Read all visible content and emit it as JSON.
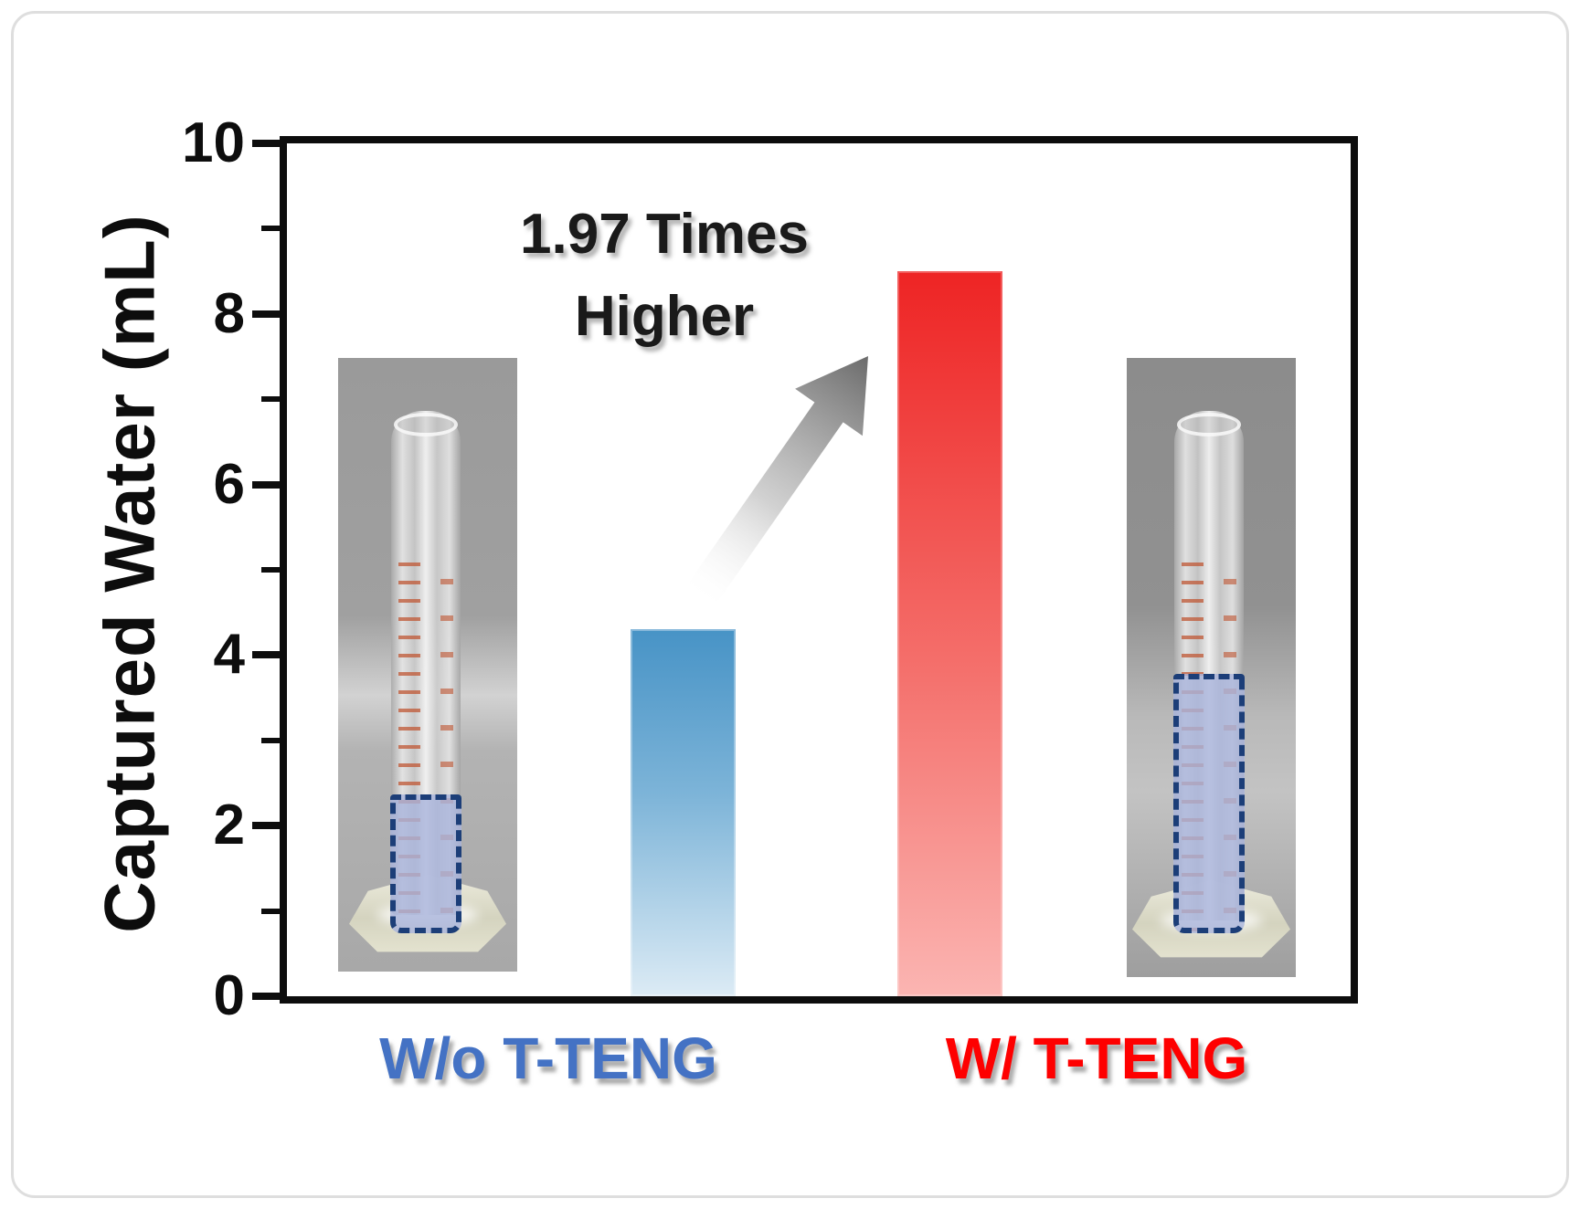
{
  "figure": {
    "annotation": {
      "line1": "1.97 Times",
      "line2": "Higher"
    },
    "x_labels": {
      "without": "W/o T-TENG",
      "with": "W/ T-TENG"
    }
  },
  "chart_data": {
    "type": "bar",
    "title": "",
    "categories": [
      "W/o T-TENG",
      "W/ T-TENG"
    ],
    "values": [
      4.3,
      8.5
    ],
    "xlabel": "",
    "ylabel": "Captured Water (mL)",
    "ylim": [
      0,
      10
    ],
    "yticks_major": [
      0,
      2,
      4,
      6,
      8,
      10
    ],
    "yticks_minor": [
      1,
      3,
      5,
      7,
      9
    ],
    "grid": false,
    "legend": false,
    "annotation": "1.97 Times Higher",
    "series_colors": [
      "#4793C6",
      "#EE2424"
    ]
  },
  "colors": {
    "axis": "#0d0d0d",
    "bar-blue-top": "#4793C6",
    "bar-blue-bottom": "#DCEBF5",
    "bar-red-top": "#EE2424",
    "bar-red-bottom": "#FBB5B2",
    "label-blue": "#4472C4",
    "label-red": "#FE0000",
    "annotation-text": "#1A1A1A",
    "arrow-dark": "#6B6B6B",
    "water-dash": "#1C3E78"
  },
  "assets": {
    "left_photo": "graduated-cylinder-without-tteng",
    "right_photo": "graduated-cylinder-with-tteng",
    "arrow": "increase-arrow"
  }
}
